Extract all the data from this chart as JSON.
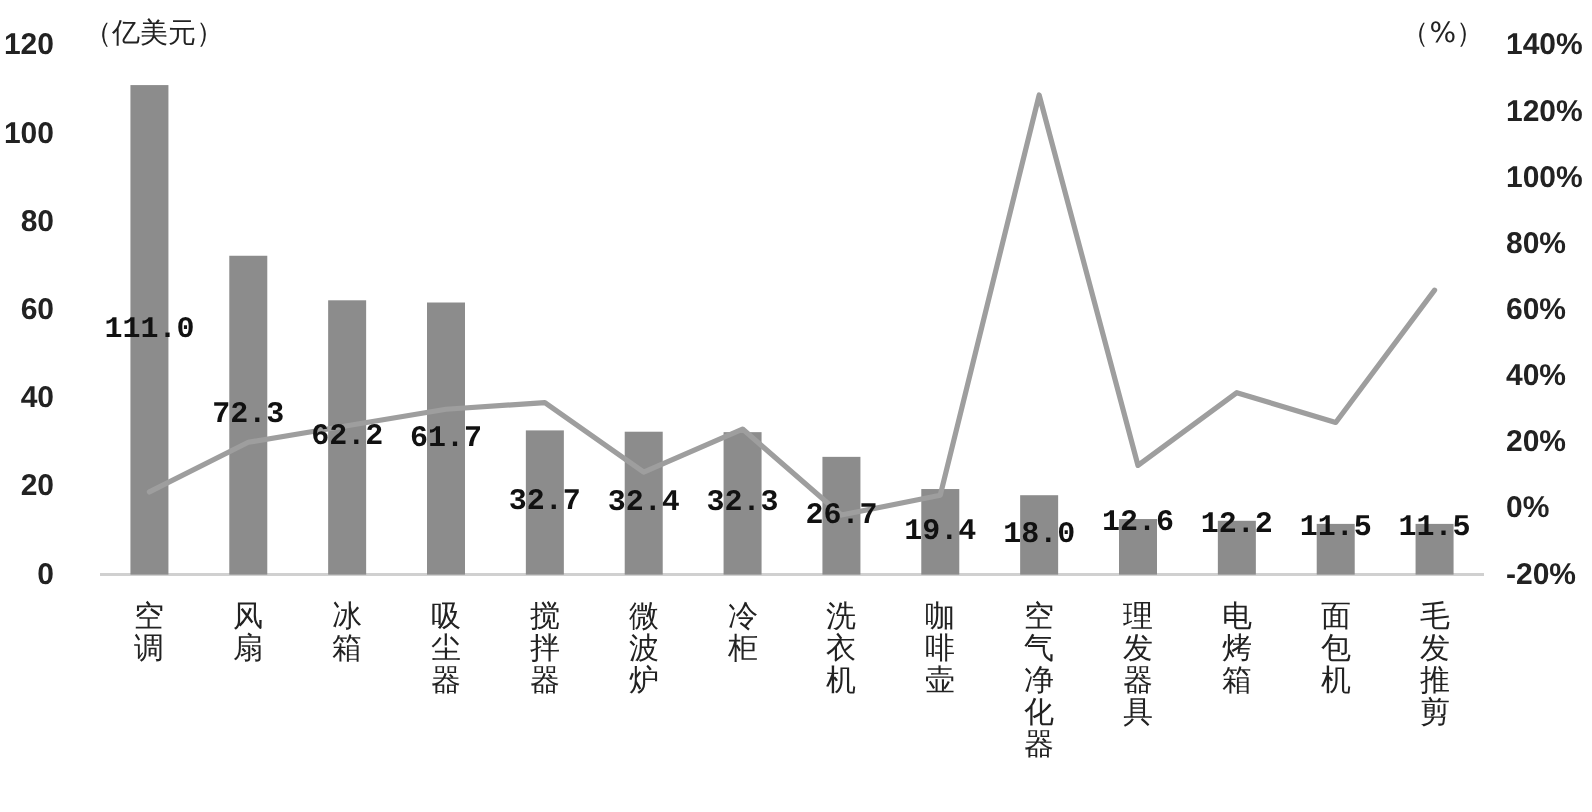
{
  "chart_data": {
    "type": "bar",
    "ylabel": "（亿美元）",
    "y2label": "（%）",
    "categories": [
      "空调",
      "风扇",
      "冰箱",
      "吸尘器",
      "搅拌器",
      "微波炉",
      "冷柜",
      "洗衣机",
      "咖啡壶",
      "空气净化器",
      "理发器具",
      "电烤箱",
      "面包机",
      "毛发推剪"
    ],
    "series": [
      {
        "type": "bar",
        "color": "#8c8c8c",
        "values": [
          111.0,
          72.3,
          62.2,
          61.7,
          32.7,
          32.4,
          32.3,
          26.7,
          19.4,
          18.0,
          12.6,
          12.2,
          11.5,
          11.5
        ],
        "value_labels": [
          "111.0",
          "72.3",
          "62.2",
          "61.7",
          "32.7",
          "32.4",
          "32.3",
          "26.7",
          "19.4",
          "18.0",
          "12.6",
          "12.2",
          "11.5",
          "11.5"
        ]
      },
      {
        "type": "line",
        "axis": "y2",
        "color": "#9e9e9e",
        "values": [
          5,
          20,
          25,
          30,
          32,
          11,
          24,
          -2,
          4,
          125,
          13,
          35,
          26,
          66
        ]
      }
    ],
    "ylim": [
      0,
      120
    ],
    "yticks": [
      0,
      20,
      40,
      60,
      80,
      100,
      120
    ],
    "y2lim": [
      -20,
      140
    ],
    "y2ticks": [
      {
        "value": -20,
        "label": "-20%"
      },
      {
        "value": 0,
        "label": "0%"
      },
      {
        "value": 20,
        "label": "20%"
      },
      {
        "value": 40,
        "label": "40%"
      },
      {
        "value": 60,
        "label": "60%"
      },
      {
        "value": 80,
        "label": "80%"
      },
      {
        "value": 100,
        "label": "100%"
      },
      {
        "value": 120,
        "label": "120%"
      },
      {
        "value": 140,
        "label": "140%"
      }
    ]
  }
}
